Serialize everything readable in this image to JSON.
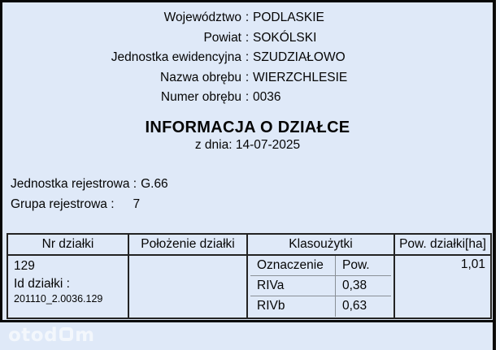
{
  "colors": {
    "page_background": "#dfe9f8",
    "frame_border": "#070707",
    "table_border": "#232323",
    "subtable_rule": "#8a9097",
    "text": "#050505",
    "right_edge_strip": "#f4f8fd",
    "watermark": "rgba(255,255,255,0.62)"
  },
  "header_info": {
    "separator": ":",
    "rows": [
      {
        "label": "Województwo",
        "value": "PODLASKIE"
      },
      {
        "label": "Powiat",
        "value": "SOKÓLSKI"
      },
      {
        "label": "Jednostka ewidencyjna",
        "value": "SZUDZIAŁOWO"
      },
      {
        "label": "Nazwa obrębu",
        "value": "WIERZCHLESIE"
      },
      {
        "label": "Numer obrębu",
        "value": "0036"
      }
    ]
  },
  "title": "INFORMACJA O DZIAŁCE",
  "date_line": "z dnia: 14-07-2025",
  "register": {
    "unit_label": "Jednostka rejestrowa :",
    "unit_value": "G.66",
    "group_label": "Grupa rejestrowa :",
    "group_value": "7"
  },
  "table": {
    "headers": [
      "Nr działki",
      "Położenie działki",
      "Klasoużytki",
      "Pow. działki[ha]"
    ],
    "row": {
      "parcel_number": "129",
      "parcel_id_label": "Id działki :",
      "parcel_id_value": "201110_2.0036.129",
      "location": "",
      "land_use": {
        "col_designation": "Oznaczenie",
        "col_area": "Pow.",
        "rows": [
          {
            "designation": "RIVa",
            "area": "0,38"
          },
          {
            "designation": "RIVb",
            "area": "0,63"
          }
        ]
      },
      "area_ha": "1,01"
    }
  },
  "watermark": {
    "part1": "otod",
    "part2": "m"
  }
}
